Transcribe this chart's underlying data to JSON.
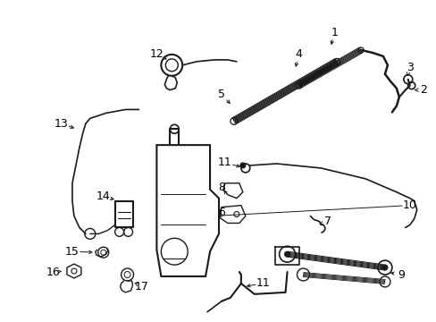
{
  "background_color": "#ffffff",
  "figsize": [
    4.89,
    3.6
  ],
  "dpi": 100,
  "line_color": "#1a1a1a",
  "line_width": 1.0,
  "font_size": 9.0
}
